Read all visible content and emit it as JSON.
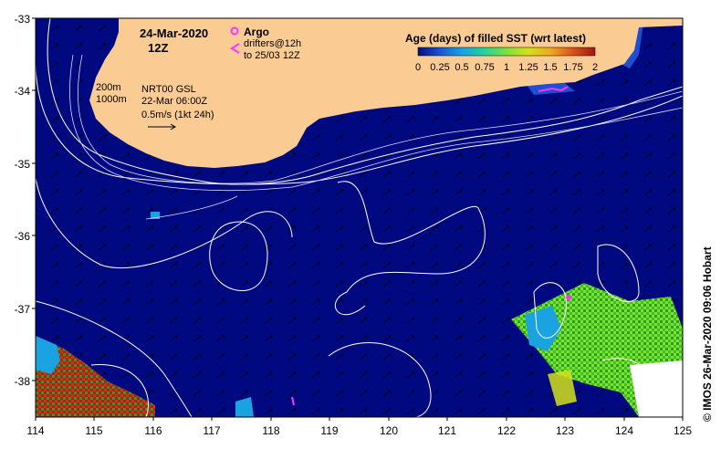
{
  "map": {
    "date_line1": "24-Mar-2020",
    "date_line2": "12Z",
    "argo_label": "Argo",
    "drifters_line1": "drifters@12h",
    "drifters_line2": "to 25/03 12Z",
    "iso_200": "200m",
    "iso_1000": "1000m",
    "product_line1": "NRT00 GSL",
    "product_line2": "22-Mar 06:00Z",
    "current_scale": "0.5m/s (1kt 24h)",
    "credit": "© IMOS 26-Mar-2020 09:06 Hobart"
  },
  "legend": {
    "title": "Age (days) of filled SST (wrt latest)",
    "tick_labels": [
      "0",
      "0.25",
      "0.5",
      "0.75",
      "1",
      "1.25",
      "1.5",
      "1.75",
      "2"
    ],
    "colors": [
      "#0b0b7a",
      "#1f4fd1",
      "#1aa3e0",
      "#25d0a0",
      "#7fe03a",
      "#d4e21a",
      "#f0a81a",
      "#e0521a",
      "#9e1a10"
    ]
  },
  "axes": {
    "x_ticks": [
      "114",
      "115",
      "116",
      "117",
      "118",
      "119",
      "120",
      "121",
      "122",
      "123",
      "124",
      "125"
    ],
    "y_ticks": [
      "-33",
      "-34",
      "-35",
      "-36",
      "-37",
      "-38"
    ]
  },
  "colors": {
    "ocean": "#00097f",
    "land": "#fbcb94",
    "contour": "#ffffff",
    "argo": "#ff33ff",
    "drifter": "#ff33ff"
  }
}
